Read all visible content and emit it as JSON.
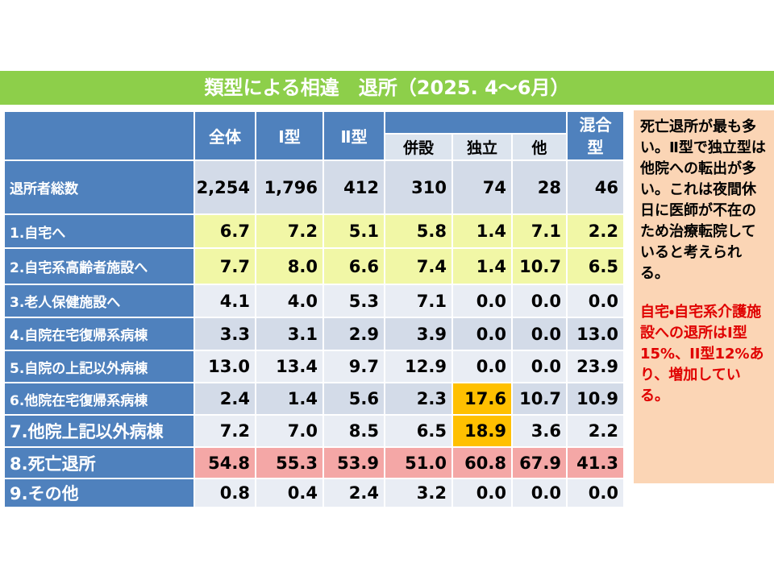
{
  "header": {
    "title": "類型による相違　退所（2025. 4～6月）"
  },
  "table": {
    "columns": [
      "全体",
      "Ⅰ型",
      "Ⅱ型",
      "併設",
      "独立",
      "他",
      "混合型"
    ],
    "rows": [
      [
        "退所者総数",
        "2,254",
        "1,796",
        "412",
        "310",
        "74",
        "28",
        "46"
      ],
      [
        "1.自宅へ",
        "6.7",
        "7.2",
        "5.1",
        "5.8",
        "1.4",
        "7.1",
        "2.2"
      ],
      [
        "2.自宅系高齢者施設へ",
        "7.7",
        "8.0",
        "6.6",
        "7.4",
        "1.4",
        "10.7",
        "6.5"
      ],
      [
        "3.老人保健施設へ",
        "4.1",
        "4.0",
        "5.3",
        "7.1",
        "0.0",
        "0.0",
        "0.0"
      ],
      [
        "4.自院在宅復帰系病棟",
        "3.3",
        "3.1",
        "2.9",
        "3.9",
        "0.0",
        "0.0",
        "13.0"
      ],
      [
        "5.自院の上記以外病棟",
        "13.0",
        "13.4",
        "9.7",
        "12.9",
        "0.0",
        "0.0",
        "23.9"
      ],
      [
        "6.他院在宅復帰系病棟",
        "2.4",
        "1.4",
        "5.6",
        "2.3",
        "17.6",
        "10.7",
        "10.9"
      ],
      [
        "7.他院上記以外病棟",
        "7.2",
        "7.0",
        "8.5",
        "6.5",
        "18.9",
        "3.6",
        "2.2"
      ],
      [
        "8.死亡退所",
        "54.8",
        "55.3",
        "53.9",
        "51.0",
        "60.8",
        "67.9",
        "41.3"
      ],
      [
        "9.その他",
        "0.8",
        "0.4",
        "2.4",
        "3.2",
        "0.0",
        "0.0",
        "0.0"
      ]
    ]
  },
  "note": {
    "text": "死亡退所が最も多い。Ⅱ型で独立型は他院への転出が多い。これは夜間休日に医師が不在のため治療転院していると考えられる。",
    "highlight": "自宅・自宅系介護施設への退所はI型15%、II型12%あり、増加している。"
  }
}
